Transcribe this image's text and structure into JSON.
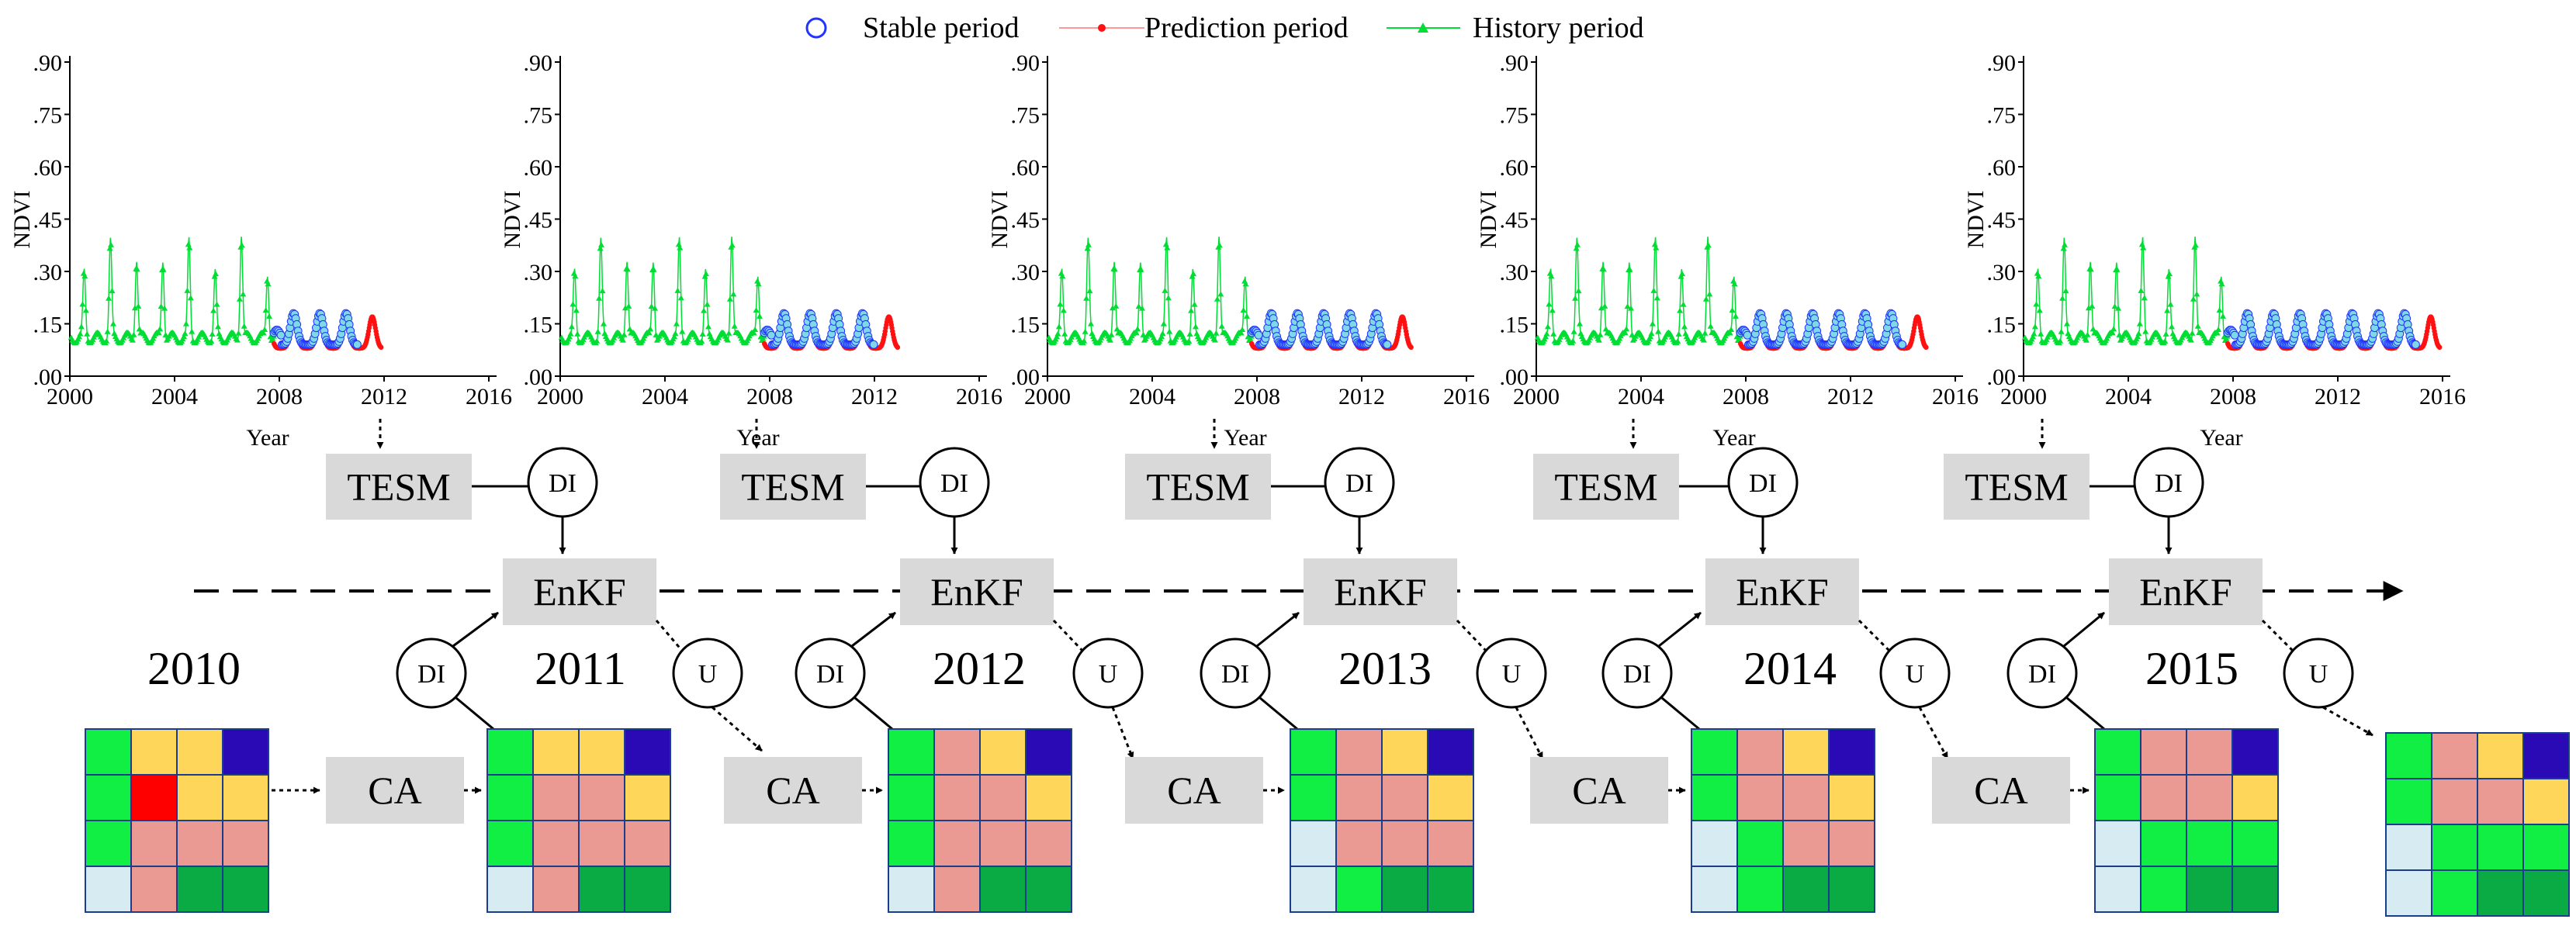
{
  "legend": {
    "stable": "Stable period",
    "prediction": "Prediction period",
    "history": "History period"
  },
  "colors": {
    "history": "#00dd33",
    "prediction": "#ff1111",
    "stable": "#2233ff",
    "box_fill": "#d9d9d9",
    "cell_green": "#11ee44",
    "cell_yellow": "#fdd65a",
    "cell_blue": "#2a0ab5",
    "cell_red": "#ff0000",
    "cell_pink": "#ea9a92",
    "cell_light": "#d6ecf2",
    "cell_dark": "#0aaa44"
  },
  "axis": {
    "ylabel": "NDVI",
    "xlabel": "Year",
    "yticks": [
      ".00",
      ".15",
      ".30",
      ".45",
      ".60",
      ".75",
      ".90"
    ],
    "yvalues": [
      0,
      0.15,
      0.3,
      0.45,
      0.6,
      0.75,
      0.9
    ],
    "xticks": [
      "2000",
      "2004",
      "2008",
      "2012",
      "2016"
    ],
    "xvalues": [
      2000,
      2004,
      2008,
      2012,
      2016
    ],
    "xlim": [
      2000,
      2016
    ],
    "ylim": [
      0,
      0.9
    ]
  },
  "chart_data": [
    {
      "type": "line",
      "history_end": 2007.8,
      "prediction_end": 2011.9,
      "stable_start": 2007.8,
      "stable_end": 2011.0
    },
    {
      "type": "line",
      "history_end": 2007.8,
      "prediction_end": 2012.9,
      "stable_start": 2007.8,
      "stable_end": 2012.0
    },
    {
      "type": "line",
      "history_end": 2007.8,
      "prediction_end": 2013.9,
      "stable_start": 2007.8,
      "stable_end": 2013.0
    },
    {
      "type": "line",
      "history_end": 2007.8,
      "prediction_end": 2014.9,
      "stable_start": 2007.8,
      "stable_end": 2014.0
    },
    {
      "type": "line",
      "history_end": 2007.8,
      "prediction_end": 2015.9,
      "stable_start": 2007.8,
      "stable_end": 2015.0
    }
  ],
  "labels": {
    "tesm": "TESM",
    "di": "DI",
    "enkf": "EnKF",
    "u": "U",
    "ca": "CA"
  },
  "years": [
    "2010",
    "2011",
    "2012",
    "2013",
    "2014",
    "2015"
  ],
  "grids": [
    [
      [
        "G",
        "Y",
        "Y",
        "B"
      ],
      [
        "G",
        "R",
        "Y",
        "Y"
      ],
      [
        "G",
        "P",
        "P",
        "P"
      ],
      [
        "L",
        "P",
        "D",
        "D"
      ]
    ],
    [
      [
        "G",
        "Y",
        "Y",
        "B"
      ],
      [
        "G",
        "P",
        "P",
        "Y"
      ],
      [
        "G",
        "P",
        "P",
        "P"
      ],
      [
        "L",
        "P",
        "D",
        "D"
      ]
    ],
    [
      [
        "G",
        "P",
        "Y",
        "B"
      ],
      [
        "G",
        "P",
        "P",
        "Y"
      ],
      [
        "G",
        "P",
        "P",
        "P"
      ],
      [
        "L",
        "P",
        "D",
        "D"
      ]
    ],
    [
      [
        "G",
        "P",
        "Y",
        "B"
      ],
      [
        "G",
        "P",
        "P",
        "Y"
      ],
      [
        "L",
        "P",
        "P",
        "P"
      ],
      [
        "L",
        "G",
        "D",
        "D"
      ]
    ],
    [
      [
        "G",
        "P",
        "Y",
        "B"
      ],
      [
        "G",
        "P",
        "P",
        "Y"
      ],
      [
        "L",
        "G",
        "P",
        "P"
      ],
      [
        "L",
        "G",
        "D",
        "D"
      ]
    ],
    [
      [
        "G",
        "P",
        "P",
        "B"
      ],
      [
        "G",
        "P",
        "P",
        "Y"
      ],
      [
        "L",
        "G",
        "G",
        "G"
      ],
      [
        "L",
        "G",
        "D",
        "D"
      ]
    ],
    [
      [
        "G",
        "P",
        "Y",
        "B"
      ],
      [
        "G",
        "P",
        "P",
        "Y"
      ],
      [
        "L",
        "G",
        "G",
        "G"
      ],
      [
        "L",
        "G",
        "D",
        "D"
      ]
    ]
  ]
}
